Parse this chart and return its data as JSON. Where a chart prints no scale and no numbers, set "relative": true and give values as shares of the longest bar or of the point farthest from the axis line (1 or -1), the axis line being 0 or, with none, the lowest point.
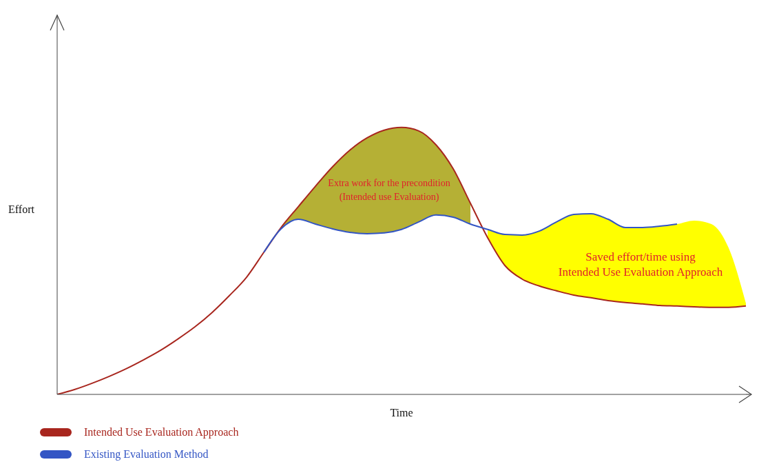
{
  "chart_data": {
    "type": "line",
    "relative": true,
    "xlabel": "Time",
    "ylabel": "Effort",
    "legend": "bottom left",
    "categories": [
      null,
      null,
      null,
      null,
      null,
      null,
      null,
      null,
      null,
      null,
      null,
      null,
      null,
      null,
      null,
      null,
      null,
      null,
      null,
      null,
      null,
      null,
      null,
      null,
      null,
      null,
      null,
      null,
      null,
      null,
      null,
      null,
      null,
      null,
      null,
      null,
      null,
      null,
      null,
      null,
      null
    ],
    "series": [
      {
        "name": "Intended Use Evaluation Approach",
        "color": "#a8261e",
        "values": [
          0,
          0.018,
          0.041,
          0.067,
          0.096,
          0.129,
          0.165,
          0.207,
          0.253,
          0.307,
          0.37,
          0.439,
          0.532,
          0.625,
          0.703,
          0.78,
          0.853,
          0.915,
          0.961,
          0.99,
          1,
          0.987,
          0.935,
          0.845,
          0.716,
          0.587,
          0.483,
          0.432,
          0.406,
          0.388,
          0.372,
          0.362,
          0.351,
          0.344,
          0.339,
          0.333,
          0.331,
          0.328,
          0.326,
          0.326,
          0.331
        ],
        "lower": [
          null,
          null,
          null,
          null,
          null,
          null,
          null,
          null,
          null,
          null,
          null,
          null,
          0.532,
          0.62,
          0.656,
          0.638,
          0.62,
          0.607,
          0.602,
          0.605,
          0.618,
          0.646,
          0.672,
          0.664,
          0.638,
          null,
          null,
          null,
          null,
          null,
          null,
          null,
          null,
          null,
          null,
          null,
          null,
          null,
          null,
          null,
          null
        ],
        "upper": [
          null,
          null,
          null,
          null,
          null,
          null,
          null,
          null,
          null,
          null,
          null,
          null,
          0.532,
          0.625,
          0.703,
          0.78,
          0.853,
          0.915,
          0.961,
          0.99,
          1,
          0.987,
          0.935,
          0.845,
          0.716,
          null,
          null,
          null,
          null,
          null,
          null,
          null,
          null,
          null,
          null,
          null,
          null,
          null,
          null,
          null,
          null
        ]
      },
      {
        "name": "Existing Evaluation Method",
        "color": "#3355c4",
        "values": [
          null,
          null,
          null,
          null,
          null,
          null,
          null,
          null,
          null,
          null,
          null,
          null,
          0.532,
          0.62,
          0.656,
          0.638,
          0.62,
          0.607,
          0.602,
          0.605,
          0.618,
          0.646,
          0.672,
          0.664,
          0.638,
          0.618,
          0.599,
          0.597,
          0.612,
          0.646,
          0.674,
          0.677,
          0.656,
          0.625,
          0.625,
          0.63,
          0.638,
          null,
          null,
          null,
          null
        ],
        "lower": [
          null,
          null,
          null,
          null,
          null,
          null,
          null,
          null,
          null,
          null,
          null,
          null,
          null,
          null,
          null,
          null,
          null,
          null,
          null,
          null,
          null,
          null,
          null,
          null,
          null,
          0.587,
          0.483,
          0.432,
          0.406,
          0.388,
          0.372,
          0.362,
          0.351,
          0.344,
          0.339,
          0.333,
          0.331,
          0.328,
          0.326,
          0.326,
          0.331
        ],
        "upper": [
          null,
          null,
          null,
          null,
          null,
          null,
          null,
          null,
          null,
          null,
          null,
          null,
          null,
          null,
          null,
          null,
          null,
          null,
          null,
          null,
          null,
          null,
          null,
          null,
          null,
          0.618,
          0.599,
          0.597,
          0.612,
          0.646,
          0.674,
          0.677,
          0.656,
          0.625,
          0.625,
          0.63,
          0.638,
          0.651,
          0.638,
          0.548,
          0.341
        ]
      }
    ],
    "annotations": [
      "Extra work for the precondition\n(Intended use Evaluation)",
      "Saved effort/time using\nIntended Use Evaluation Approach"
    ]
  }
}
